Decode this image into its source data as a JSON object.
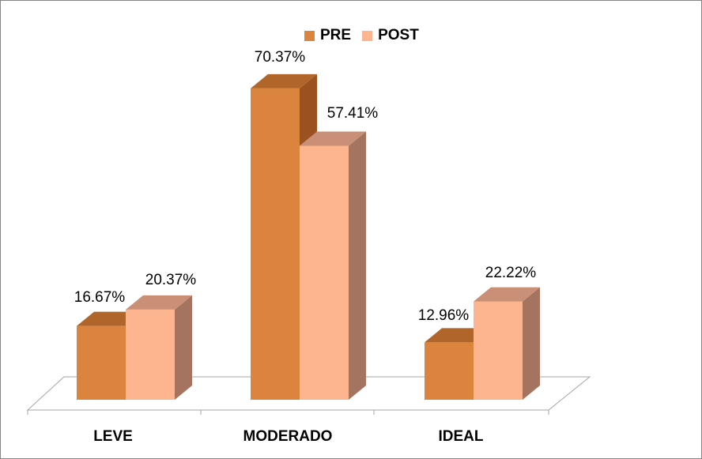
{
  "chart_data": {
    "type": "bar",
    "categories": [
      "LEVE",
      "MODERADO",
      "IDEAL"
    ],
    "series": [
      {
        "name": "PRE",
        "values": [
          16.67,
          70.37,
          12.96
        ],
        "labels": [
          "16.67%",
          "70.37%",
          "12.96%"
        ],
        "color": "#DA843E",
        "top_color": "#B0652A",
        "side_color": "#9A5320"
      },
      {
        "name": "POST",
        "values": [
          20.37,
          57.41,
          22.22
        ],
        "labels": [
          "20.37%",
          "57.41%",
          "22.22%"
        ],
        "color": "#FCB58E",
        "top_color": "#C99077",
        "side_color": "#A57461"
      }
    ],
    "ylim": [
      0,
      80
    ],
    "grid": false,
    "legend_position": "top",
    "three_d": true,
    "title": "",
    "xlabel": "",
    "ylabel": ""
  }
}
